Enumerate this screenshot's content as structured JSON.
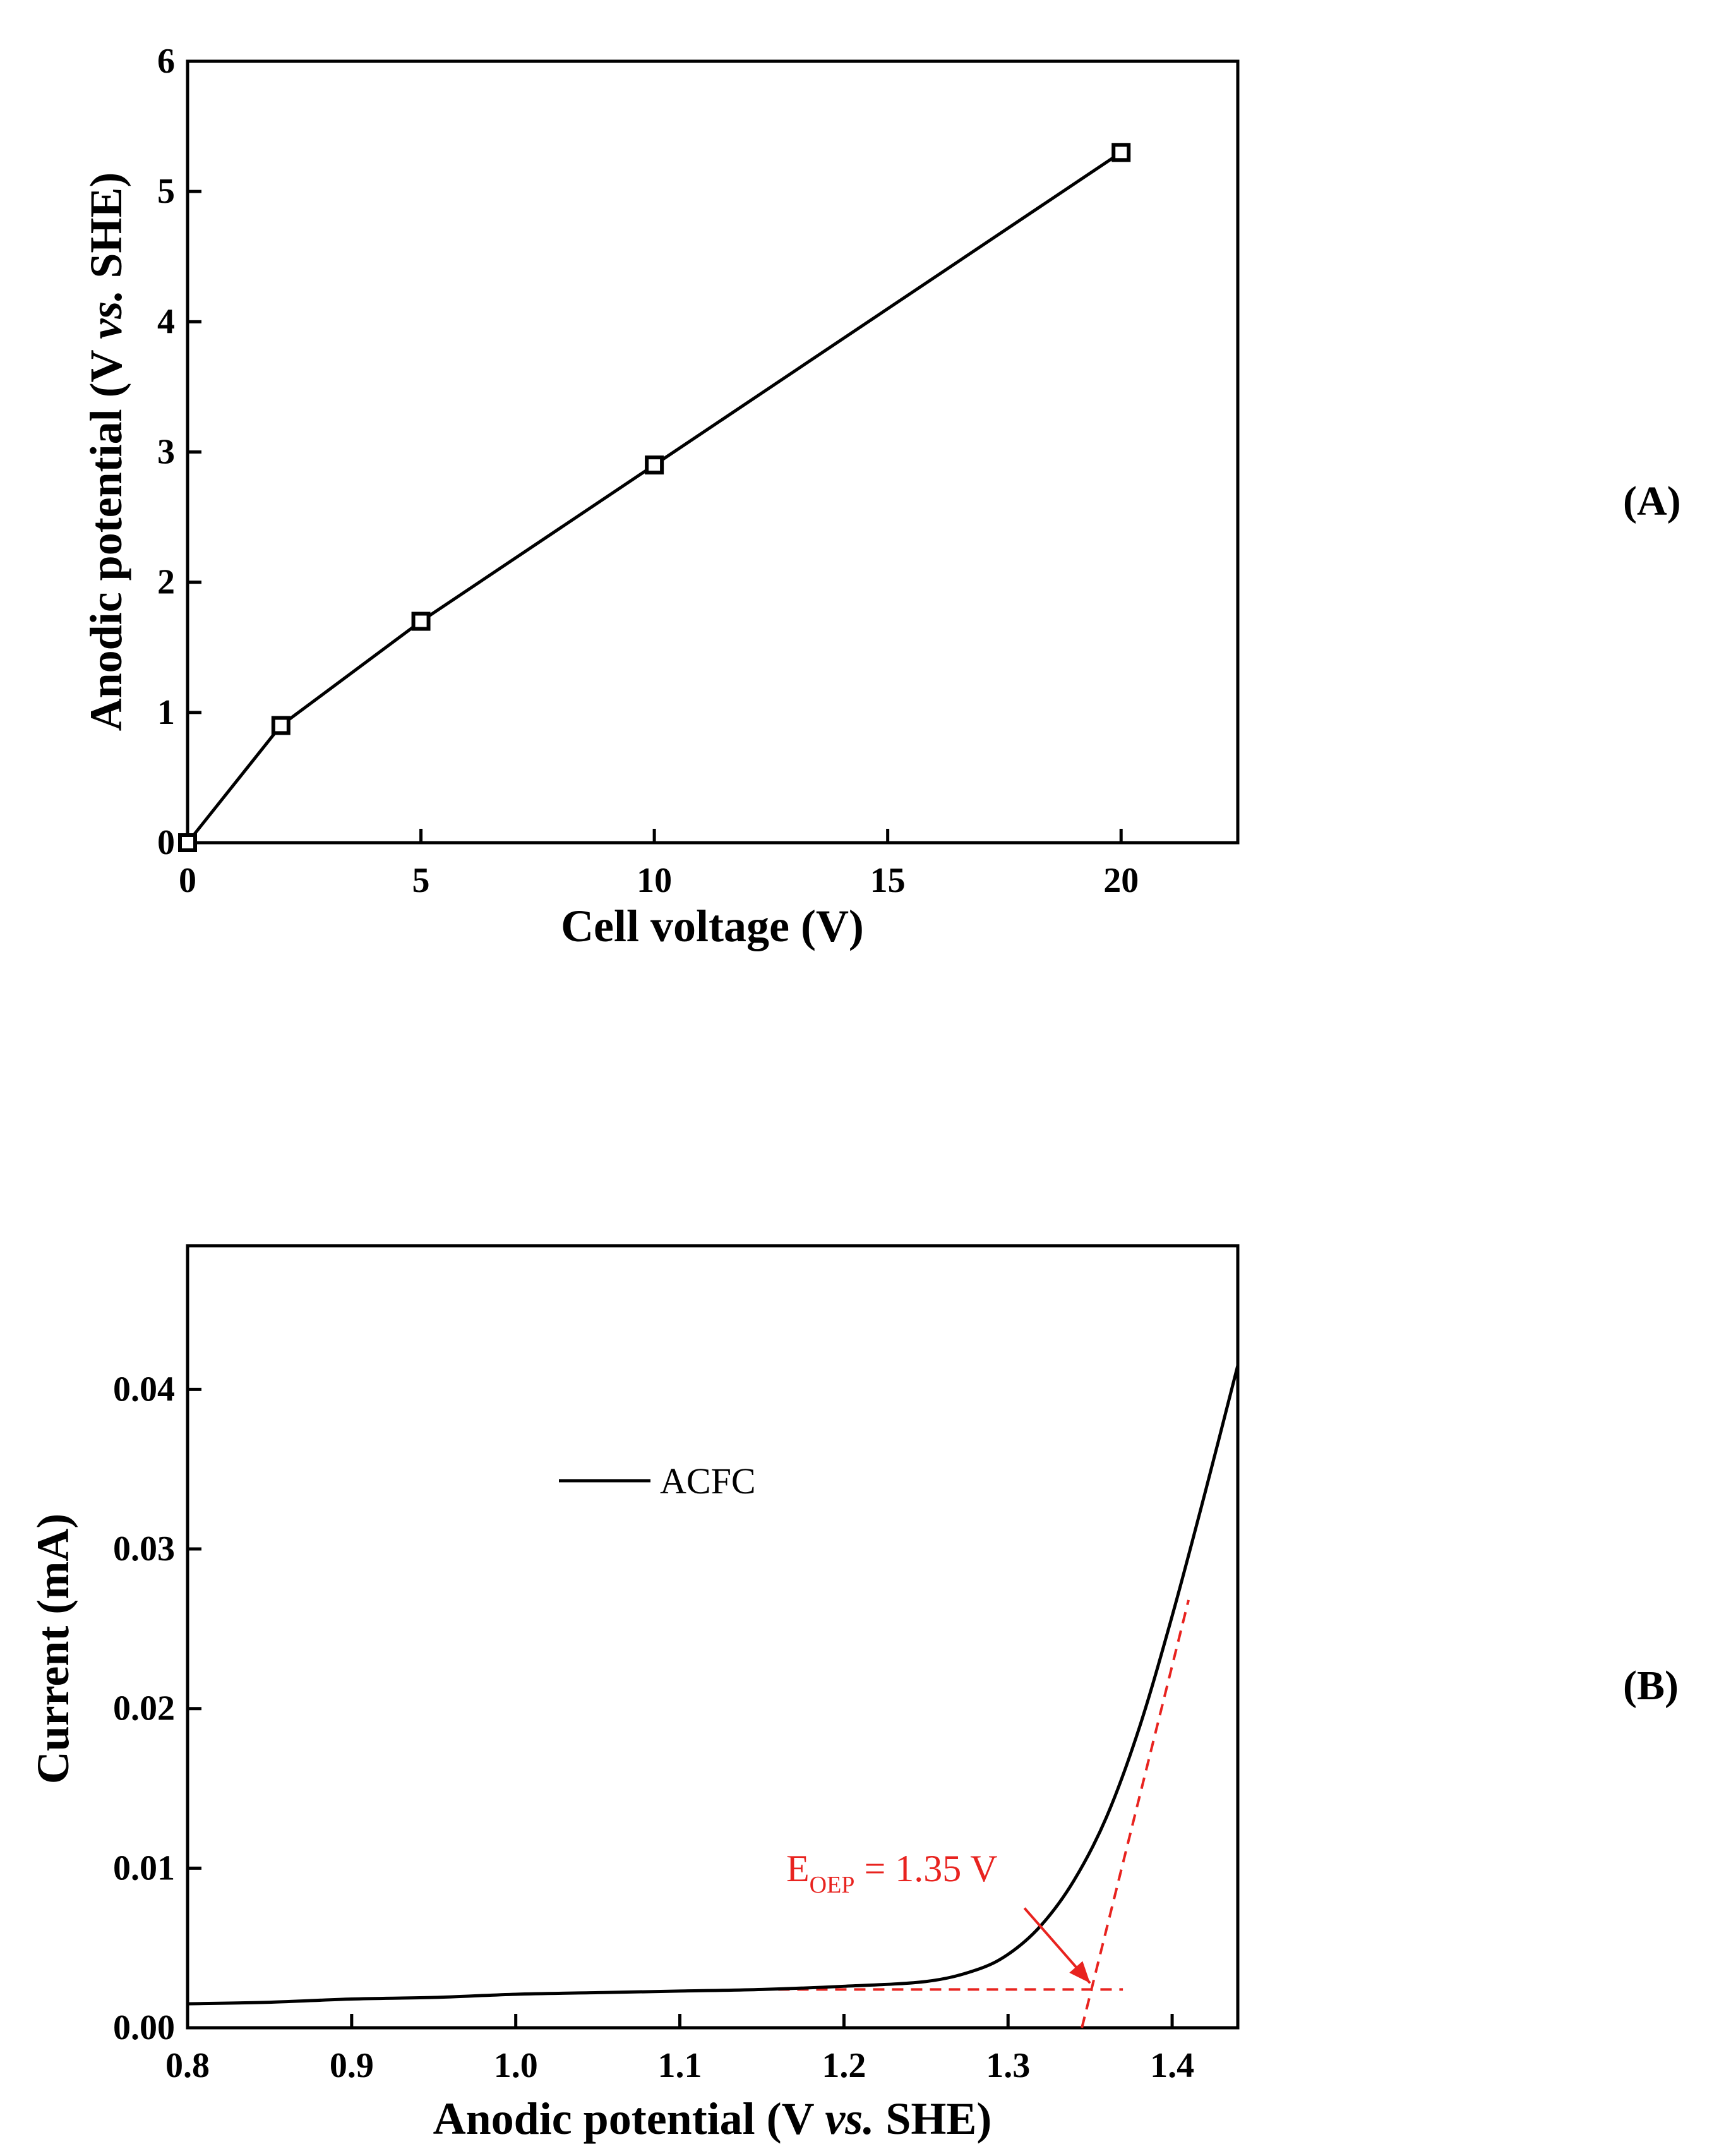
{
  "chart_data": [
    {
      "panel": "(A)",
      "type": "line",
      "xlabel": "Cell voltage (V)",
      "ylabel": "Anodic potential (V vs. SHE)",
      "xlim": [
        0,
        22.5
      ],
      "ylim": [
        0,
        6
      ],
      "xticks": [
        0,
        5,
        10,
        15,
        20
      ],
      "yticks": [
        0,
        1,
        2,
        3,
        4,
        5,
        6
      ],
      "series": [
        {
          "marker": "open-square",
          "x": [
            0,
            2,
            5,
            10,
            20
          ],
          "y": [
            0,
            0.9,
            1.7,
            2.9,
            5.3
          ]
        }
      ],
      "grid": false
    },
    {
      "panel": "(B)",
      "type": "line",
      "xlabel": "Anodic potential (V vs. SHE)",
      "ylabel": "Current (mA)",
      "xlim": [
        0.8,
        1.44
      ],
      "ylim": [
        0,
        0.049
      ],
      "xticks": [
        "0.8",
        "0.9",
        "1.0",
        "1.1",
        "1.2",
        "1.3",
        "1.4"
      ],
      "yticks": [
        "0.00",
        "0.01",
        "0.02",
        "0.03",
        "0.04"
      ],
      "legend": {
        "placement": "top-left",
        "entries": [
          "ACFC"
        ]
      },
      "series": [
        {
          "name": "ACFC",
          "x": [
            0.8,
            0.85,
            0.9,
            0.95,
            1.0,
            1.05,
            1.1,
            1.15,
            1.2,
            1.25,
            1.28,
            1.3,
            1.32,
            1.34,
            1.36,
            1.38,
            1.4,
            1.42,
            1.44
          ],
          "y": [
            0.0015,
            0.0016,
            0.0018,
            0.0019,
            0.0021,
            0.0022,
            0.0023,
            0.0024,
            0.0026,
            0.0029,
            0.0036,
            0.0046,
            0.0064,
            0.0092,
            0.0132,
            0.0188,
            0.0258,
            0.0335,
            0.0415
          ]
        }
      ],
      "tangent_lines": [
        {
          "style": "dashed",
          "color": "#e8231f",
          "x": [
            1.16,
            1.37
          ],
          "y": [
            0.0024,
            0.0024
          ]
        },
        {
          "style": "dashed",
          "color": "#e8231f",
          "x": [
            1.345,
            1.41
          ],
          "y": [
            0.0,
            0.0268
          ]
        }
      ],
      "annotation": {
        "text_main": "E",
        "text_sub": "OEP",
        "text_value": " = 1.35 V",
        "color": "#e8231f",
        "arrow_from": [
          1.31,
          0.0075
        ],
        "arrow_to": [
          1.35,
          0.0028
        ]
      },
      "grid": false
    }
  ]
}
